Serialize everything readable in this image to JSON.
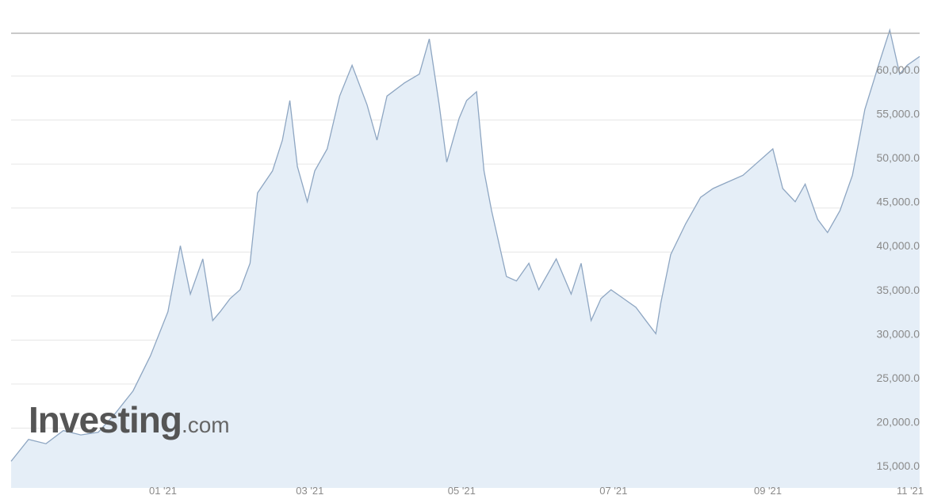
{
  "watermark": {
    "brand": "Investing",
    "suffix": ".com"
  },
  "colors": {
    "area_fill": "#e5eef7",
    "line": "#8ea6c2",
    "grid": "#e6e6e6",
    "axis_text": "#8a8a8a"
  },
  "chart_data": {
    "type": "area",
    "title": "",
    "xlabel": "",
    "ylabel": "",
    "x_tick_labels": [
      "01 '21",
      "03 '21",
      "05 '21",
      "07 '21",
      "09 '21",
      "11 '21"
    ],
    "y_tick_labels": [
      "15,000.0",
      "20,000.0",
      "25,000.0",
      "30,000.0",
      "35,000.0",
      "40,000.0",
      "45,000.0",
      "50,000.0",
      "55,000.0",
      "60,000.0"
    ],
    "y_ticks": [
      15000,
      20000,
      25000,
      30000,
      35000,
      40000,
      45000,
      50000,
      55000,
      60000
    ],
    "ylim": [
      14000,
      67000
    ],
    "xlim": [
      "2020-11-01",
      "2021-11-01"
    ],
    "grid": true,
    "y_axis_position": "right",
    "series": [
      {
        "x": [
          "2020-11-01",
          "2020-11-08",
          "2020-11-15",
          "2020-11-22",
          "2020-11-29",
          "2020-12-06",
          "2020-12-13",
          "2020-12-20",
          "2020-12-27",
          "2021-01-03",
          "2021-01-08",
          "2021-01-12",
          "2021-01-17",
          "2021-01-21",
          "2021-01-24",
          "2021-01-28",
          "2021-02-01",
          "2021-02-05",
          "2021-02-08",
          "2021-02-14",
          "2021-02-18",
          "2021-02-21",
          "2021-02-24",
          "2021-02-28",
          "2021-03-03",
          "2021-03-08",
          "2021-03-13",
          "2021-03-18",
          "2021-03-24",
          "2021-03-28",
          "2021-04-01",
          "2021-04-08",
          "2021-04-14",
          "2021-04-18",
          "2021-04-22",
          "2021-04-25",
          "2021-04-30",
          "2021-05-03",
          "2021-05-07",
          "2021-05-10",
          "2021-05-13",
          "2021-05-19",
          "2021-05-23",
          "2021-05-28",
          "2021-06-01",
          "2021-06-08",
          "2021-06-14",
          "2021-06-18",
          "2021-06-22",
          "2021-06-26",
          "2021-06-30",
          "2021-07-05",
          "2021-07-10",
          "2021-07-14",
          "2021-07-18",
          "2021-07-20",
          "2021-07-24",
          "2021-07-30",
          "2021-08-05",
          "2021-08-10",
          "2021-08-14",
          "2021-08-22",
          "2021-08-28",
          "2021-09-03",
          "2021-09-07",
          "2021-09-12",
          "2021-09-16",
          "2021-09-21",
          "2021-09-25",
          "2021-09-30",
          "2021-10-05",
          "2021-10-10",
          "2021-10-16",
          "2021-10-20",
          "2021-10-24",
          "2021-10-27",
          "2021-11-01"
        ],
        "values": [
          15500,
          18000,
          17500,
          19000,
          18500,
          18800,
          21000,
          23500,
          27500,
          32500,
          40000,
          34500,
          38500,
          31500,
          32500,
          34000,
          35000,
          38000,
          46000,
          48500,
          52000,
          56500,
          49000,
          45000,
          48500,
          51000,
          57000,
          60500,
          56000,
          52000,
          57000,
          58500,
          59500,
          63500,
          56000,
          49500,
          54500,
          56500,
          57500,
          48500,
          44000,
          36500,
          36000,
          38000,
          35000,
          38500,
          34500,
          38000,
          31500,
          34000,
          35000,
          34000,
          33000,
          31500,
          30000,
          33500,
          39000,
          42500,
          45500,
          46500,
          47000,
          48000,
          49500,
          51000,
          46500,
          45000,
          47000,
          43000,
          41500,
          44000,
          48000,
          55500,
          61000,
          64500,
          59500,
          60500,
          61500
        ]
      }
    ]
  }
}
